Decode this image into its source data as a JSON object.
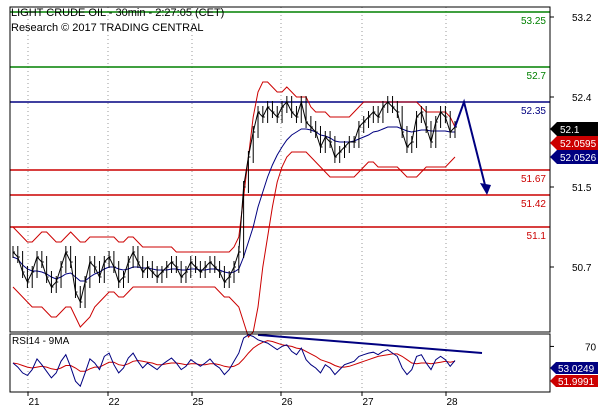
{
  "header": {
    "title": "LIGHT CRUDE OIL - 30min - 2:27:05 (CET)",
    "subtitle": "Research © 2017 TRADING CENTRAL"
  },
  "colors": {
    "resistance": "#008000",
    "pivot": "#000080",
    "support": "#cc0000",
    "price": "#000000",
    "ma": "#000080",
    "bollinger": "#cc0000",
    "arrow": "#000080",
    "last_price_badge": "#000000",
    "upper_band_badge": "#cc0000",
    "ma_badge": "#000080"
  },
  "chart_data": [
    {
      "type": "line",
      "title": "LIGHT CRUDE OIL - 30min - 2:27:05 (CET)",
      "x_tick_labels": [
        "21",
        "22",
        "25",
        "26",
        "27",
        "28"
      ],
      "y_tick_labels": [
        "53.2",
        "52.4",
        "51.5",
        "50.7"
      ],
      "ylim": [
        50.05,
        53.3
      ],
      "levels": [
        {
          "label": "53.25",
          "value": 53.25,
          "kind": "resistance"
        },
        {
          "label": "52.7",
          "value": 52.7,
          "kind": "resistance"
        },
        {
          "label": "52.35",
          "value": 52.35,
          "kind": "pivot"
        },
        {
          "label": "51.67",
          "value": 51.67,
          "kind": "support"
        },
        {
          "label": "51.42",
          "value": 51.42,
          "kind": "support"
        },
        {
          "label": "51.1",
          "value": 51.1,
          "kind": "support"
        }
      ],
      "value_badges": [
        {
          "label": "52.1",
          "value": 52.1,
          "kind": "last_price"
        },
        {
          "label": "52.0595",
          "value": 52.0595,
          "kind": "upper_band"
        },
        {
          "label": "52.0526",
          "value": 52.0526,
          "kind": "ma"
        }
      ],
      "close": [
        50.85,
        50.8,
        50.65,
        50.55,
        50.65,
        50.8,
        50.75,
        50.6,
        50.5,
        50.55,
        50.7,
        50.85,
        50.75,
        50.45,
        50.35,
        50.55,
        50.75,
        50.7,
        50.6,
        50.75,
        50.8,
        50.7,
        50.55,
        50.6,
        50.75,
        50.85,
        50.75,
        50.65,
        50.7,
        50.65,
        50.6,
        50.65,
        50.7,
        50.75,
        50.7,
        50.6,
        50.65,
        50.75,
        50.7,
        50.65,
        50.7,
        50.75,
        50.7,
        50.65,
        50.55,
        50.6,
        50.7,
        50.85,
        51.5,
        51.8,
        52.05,
        52.25,
        52.2,
        52.3,
        52.25,
        52.2,
        52.3,
        52.35,
        52.25,
        52.2,
        52.35,
        52.15,
        52.1,
        52.05,
        51.9,
        52.0,
        51.95,
        51.8,
        51.85,
        51.9,
        51.95,
        51.95,
        52.1,
        52.15,
        52.2,
        52.25,
        52.2,
        52.3,
        52.35,
        52.3,
        52.25,
        52.05,
        51.9,
        51.95,
        52.2,
        52.25,
        52.1,
        51.95,
        52.15,
        52.25,
        52.2,
        52.05,
        52.1
      ],
      "bollinger_upper": [
        51.1,
        51.05,
        51.0,
        50.95,
        50.95,
        51.0,
        51.05,
        51.05,
        51.0,
        50.95,
        50.95,
        51.0,
        51.05,
        51.0,
        50.95,
        50.95,
        51.0,
        51.0,
        51.0,
        51.0,
        51.0,
        51.0,
        50.95,
        50.95,
        51.0,
        51.0,
        50.95,
        50.9,
        50.9,
        50.9,
        50.9,
        50.9,
        50.9,
        50.9,
        50.85,
        50.85,
        50.85,
        50.85,
        50.85,
        50.85,
        50.85,
        50.85,
        50.85,
        50.85,
        50.85,
        50.85,
        50.9,
        51.0,
        51.4,
        51.8,
        52.2,
        52.45,
        52.55,
        52.55,
        52.5,
        52.45,
        52.45,
        52.5,
        52.45,
        52.4,
        52.4,
        52.4,
        52.3,
        52.25,
        52.25,
        52.25,
        52.2,
        52.2,
        52.2,
        52.2,
        52.2,
        52.25,
        52.3,
        52.35,
        52.35,
        52.35,
        52.35,
        52.35,
        52.35,
        52.35,
        52.35,
        52.35,
        52.35,
        52.35,
        52.35,
        52.3,
        52.25,
        52.25,
        52.25,
        52.25,
        52.25,
        52.2,
        52.1
      ],
      "bollinger_lower": [
        50.5,
        50.45,
        50.4,
        50.35,
        50.3,
        50.3,
        50.3,
        50.25,
        50.2,
        50.2,
        50.25,
        50.3,
        50.3,
        50.2,
        50.1,
        50.15,
        50.2,
        50.3,
        50.35,
        50.4,
        50.45,
        50.45,
        50.4,
        50.4,
        50.45,
        50.5,
        50.5,
        50.5,
        50.5,
        50.5,
        50.5,
        50.5,
        50.5,
        50.5,
        50.5,
        50.5,
        50.5,
        50.5,
        50.5,
        50.5,
        50.5,
        50.5,
        50.5,
        50.45,
        50.4,
        50.4,
        50.35,
        50.3,
        50.15,
        50.0,
        50.05,
        50.3,
        50.7,
        51.0,
        51.3,
        51.55,
        51.7,
        51.8,
        51.85,
        51.85,
        51.85,
        51.85,
        51.8,
        51.75,
        51.7,
        51.65,
        51.6,
        51.6,
        51.6,
        51.6,
        51.6,
        51.6,
        51.65,
        51.7,
        51.75,
        51.75,
        51.7,
        51.7,
        51.7,
        51.7,
        51.7,
        51.65,
        51.6,
        51.6,
        51.6,
        51.65,
        51.7,
        51.7,
        51.7,
        51.7,
        51.7,
        51.75,
        51.8
      ],
      "moving_average": [
        50.8,
        50.78,
        50.72,
        50.68,
        50.66,
        50.66,
        50.65,
        50.63,
        50.6,
        50.58,
        50.6,
        50.63,
        50.64,
        50.6,
        50.56,
        50.56,
        50.6,
        50.63,
        50.65,
        50.68,
        50.7,
        50.7,
        50.68,
        50.67,
        50.68,
        50.7,
        50.7,
        50.69,
        50.69,
        50.68,
        50.67,
        50.67,
        50.67,
        50.68,
        50.68,
        50.67,
        50.67,
        50.68,
        50.68,
        50.67,
        50.67,
        50.68,
        50.68,
        50.67,
        50.65,
        50.64,
        50.65,
        50.68,
        50.8,
        50.95,
        51.1,
        51.3,
        51.45,
        51.6,
        51.72,
        51.82,
        51.9,
        51.97,
        52.02,
        52.05,
        52.08,
        52.08,
        52.07,
        52.05,
        52.02,
        52.01,
        51.99,
        51.96,
        51.95,
        51.95,
        51.95,
        51.96,
        51.98,
        52.0,
        52.02,
        52.05,
        52.06,
        52.08,
        52.1,
        52.1,
        52.1,
        52.08,
        52.06,
        52.05,
        52.06,
        52.07,
        52.07,
        52.06,
        52.06,
        52.06,
        52.06,
        52.05,
        52.05
      ],
      "projection": {
        "from": 52.1,
        "peak": 52.35,
        "target": 51.42
      }
    },
    {
      "type": "line",
      "title": "RSI14 - 9MA",
      "y_tick_labels": [
        "70"
      ],
      "ylim": [
        15,
        85
      ],
      "value_badges": [
        {
          "label": "53.0249",
          "value": 53.0249,
          "kind": "rsi"
        },
        {
          "label": "51.9991",
          "value": 51.9991,
          "kind": "rsi_ma"
        }
      ],
      "rsi": [
        50,
        45,
        38,
        35,
        42,
        55,
        48,
        40,
        32,
        38,
        52,
        60,
        45,
        28,
        22,
        38,
        55,
        50,
        42,
        58,
        62,
        48,
        38,
        44,
        56,
        62,
        52,
        44,
        50,
        46,
        42,
        48,
        52,
        56,
        50,
        42,
        46,
        54,
        50,
        46,
        50,
        55,
        48,
        44,
        36,
        42,
        52,
        62,
        80,
        84,
        82,
        78,
        76,
        74,
        70,
        66,
        70,
        72,
        64,
        60,
        68,
        54,
        48,
        44,
        38,
        48,
        44,
        36,
        42,
        48,
        50,
        52,
        58,
        60,
        62,
        63,
        60,
        64,
        66,
        62,
        58,
        44,
        36,
        42,
        58,
        60,
        50,
        42,
        54,
        58,
        54,
        46,
        53
      ],
      "rsi_ma": [
        50,
        49,
        47,
        45,
        44,
        45,
        46,
        45,
        43,
        42,
        44,
        47,
        47,
        44,
        40,
        40,
        43,
        45,
        45,
        48,
        51,
        51,
        48,
        47,
        49,
        52,
        53,
        52,
        51,
        50,
        48,
        48,
        49,
        50,
        50,
        49,
        48,
        49,
        49,
        48,
        48,
        49,
        49,
        48,
        46,
        45,
        46,
        49,
        55,
        62,
        68,
        72,
        75,
        77,
        76,
        74,
        72,
        71,
        70,
        68,
        67,
        64,
        61,
        58,
        54,
        52,
        50,
        47,
        45,
        45,
        46,
        48,
        50,
        52,
        54,
        56,
        58,
        59,
        60,
        61,
        61,
        58,
        54,
        50,
        49,
        50,
        50,
        49,
        50,
        51,
        52,
        51,
        52
      ]
    }
  ]
}
